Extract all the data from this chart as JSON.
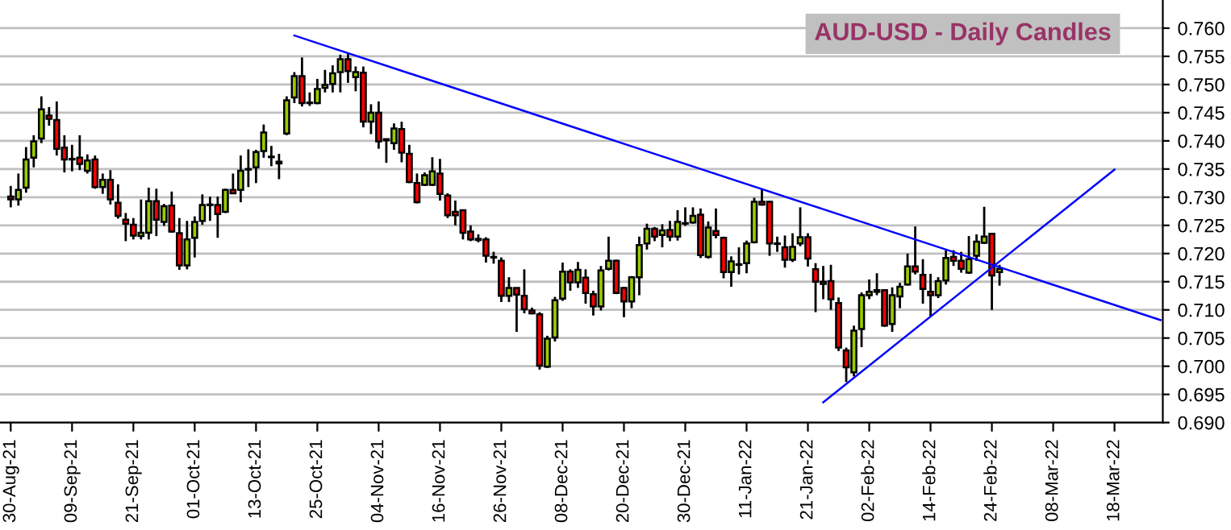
{
  "chart_data": {
    "type": "candlestick",
    "title": "AUD-USD - Daily Candles",
    "categories": [
      "30-Aug-21",
      null,
      null,
      null,
      null,
      null,
      null,
      null,
      "09-Sep-21",
      null,
      null,
      null,
      null,
      null,
      null,
      null,
      "21-Sep-21",
      null,
      null,
      null,
      null,
      null,
      null,
      null,
      "01-Oct-21",
      null,
      null,
      null,
      null,
      null,
      null,
      null,
      "13-Oct-21",
      null,
      null,
      null,
      null,
      null,
      null,
      null,
      "25-Oct-21",
      null,
      null,
      null,
      null,
      null,
      null,
      null,
      "04-Nov-21",
      null,
      null,
      null,
      null,
      null,
      null,
      null,
      "16-Nov-21",
      null,
      null,
      null,
      null,
      null,
      null,
      null,
      "26-Nov-21",
      null,
      null,
      null,
      null,
      null,
      null,
      null,
      "08-Dec-21",
      null,
      null,
      null,
      null,
      null,
      null,
      null,
      "20-Dec-21",
      null,
      null,
      null,
      null,
      null,
      null,
      null,
      "30-Dec-21",
      null,
      null,
      null,
      null,
      null,
      null,
      null,
      "11-Jan-22",
      null,
      null,
      null,
      null,
      null,
      null,
      null,
      "21-Jan-22",
      null,
      null,
      null,
      null,
      null,
      null,
      null,
      "02-Feb-22",
      null,
      null,
      null,
      null,
      null,
      null,
      null,
      "14-Feb-22",
      null,
      null,
      null,
      null,
      null,
      null,
      null,
      "24-Feb-22",
      null,
      null,
      null,
      null,
      null,
      null,
      null,
      "08-Mar-22",
      null,
      null,
      null,
      null,
      null,
      null,
      null,
      "18-Mar-22",
      null,
      null,
      null,
      null,
      null,
      null
    ],
    "ohlc": [
      [
        0.7301,
        0.732,
        0.7282,
        0.7296
      ],
      [
        0.7296,
        0.7342,
        0.7285,
        0.7313
      ],
      [
        0.7317,
        0.7389,
        0.7308,
        0.7367
      ],
      [
        0.737,
        0.741,
        0.7353,
        0.7399
      ],
      [
        0.7404,
        0.7479,
        0.7396,
        0.7456
      ],
      [
        0.7445,
        0.746,
        0.7427,
        0.7439
      ],
      [
        0.7437,
        0.747,
        0.7374,
        0.7386
      ],
      [
        0.7388,
        0.741,
        0.7344,
        0.7367
      ],
      [
        0.7367,
        0.7393,
        0.7346,
        0.7368
      ],
      [
        0.737,
        0.741,
        0.7348,
        0.7359
      ],
      [
        0.7347,
        0.7376,
        0.7342,
        0.7365
      ],
      [
        0.7367,
        0.7374,
        0.7315,
        0.7318
      ],
      [
        0.7318,
        0.7342,
        0.7306,
        0.7331
      ],
      [
        0.7331,
        0.7348,
        0.7287,
        0.7296
      ],
      [
        0.729,
        0.7323,
        0.7262,
        0.7267
      ],
      [
        0.726,
        0.7272,
        0.7222,
        0.7253
      ],
      [
        0.7251,
        0.7263,
        0.7225,
        0.7232
      ],
      [
        0.7231,
        0.7296,
        0.7225,
        0.7237
      ],
      [
        0.7237,
        0.7317,
        0.7225,
        0.7293
      ],
      [
        0.7293,
        0.7315,
        0.7231,
        0.726
      ],
      [
        0.7256,
        0.7288,
        0.7249,
        0.7284
      ],
      [
        0.7285,
        0.731,
        0.7237,
        0.7239
      ],
      [
        0.7236,
        0.7263,
        0.7171,
        0.7179
      ],
      [
        0.7179,
        0.7258,
        0.7172,
        0.7225
      ],
      [
        0.7228,
        0.7266,
        0.7193,
        0.7256
      ],
      [
        0.7258,
        0.7305,
        0.7251,
        0.7286
      ],
      [
        0.7286,
        0.7301,
        0.7258,
        0.7287
      ],
      [
        0.7286,
        0.7301,
        0.7228,
        0.727
      ],
      [
        0.7274,
        0.7315,
        0.7272,
        0.7313
      ],
      [
        0.7313,
        0.7342,
        0.7306,
        0.7307
      ],
      [
        0.7313,
        0.7374,
        0.7291,
        0.7347
      ],
      [
        0.7349,
        0.7385,
        0.7318,
        0.735
      ],
      [
        0.7353,
        0.7384,
        0.7325,
        0.738
      ],
      [
        0.7382,
        0.7429,
        0.737,
        0.7415
      ],
      [
        0.7371,
        0.7391,
        0.7355,
        0.7372
      ],
      [
        0.7363,
        0.7377,
        0.7332,
        0.736
      ],
      [
        0.7413,
        0.7479,
        0.741,
        0.7472
      ],
      [
        0.7477,
        0.7522,
        0.7467,
        0.7515
      ],
      [
        0.7515,
        0.7548,
        0.7461,
        0.7467
      ],
      [
        0.7468,
        0.7486,
        0.7462,
        0.7467
      ],
      [
        0.7467,
        0.751,
        0.7465,
        0.7492
      ],
      [
        0.7494,
        0.7526,
        0.7486,
        0.7499
      ],
      [
        0.7501,
        0.7534,
        0.7486,
        0.752
      ],
      [
        0.7522,
        0.7553,
        0.7486,
        0.7545
      ],
      [
        0.7545,
        0.7555,
        0.7503,
        0.7524
      ],
      [
        0.7513,
        0.7532,
        0.7488,
        0.7522
      ],
      [
        0.7521,
        0.7532,
        0.7424,
        0.7434
      ],
      [
        0.7434,
        0.7465,
        0.7412,
        0.745
      ],
      [
        0.745,
        0.747,
        0.7386,
        0.7399
      ],
      [
        0.7401,
        0.7403,
        0.7361,
        0.7403
      ],
      [
        0.7396,
        0.7431,
        0.7384,
        0.7422
      ],
      [
        0.7421,
        0.7434,
        0.7362,
        0.7379
      ],
      [
        0.7377,
        0.7393,
        0.7325,
        0.7327
      ],
      [
        0.7325,
        0.7342,
        0.7289,
        0.7291
      ],
      [
        0.7322,
        0.7344,
        0.732,
        0.7339
      ],
      [
        0.7322,
        0.7371,
        0.732,
        0.7346
      ],
      [
        0.7342,
        0.7368,
        0.7294,
        0.7306
      ],
      [
        0.7303,
        0.7307,
        0.7263,
        0.7268
      ],
      [
        0.7274,
        0.7294,
        0.725,
        0.7268
      ],
      [
        0.7277,
        0.7277,
        0.7225,
        0.7237
      ],
      [
        0.7239,
        0.725,
        0.7222,
        0.7225
      ],
      [
        0.7224,
        0.7234,
        0.722,
        0.7226
      ],
      [
        0.7225,
        0.7229,
        0.7184,
        0.7196
      ],
      [
        0.7194,
        0.7203,
        0.7182,
        0.7193
      ],
      [
        0.7187,
        0.7193,
        0.7114,
        0.7125
      ],
      [
        0.7125,
        0.7158,
        0.7114,
        0.7139
      ],
      [
        0.7139,
        0.7139,
        0.7061,
        0.7127
      ],
      [
        0.7125,
        0.7172,
        0.7094,
        0.7101
      ],
      [
        0.7099,
        0.7104,
        0.7092,
        0.7094
      ],
      [
        0.7092,
        0.7096,
        0.6994,
        0.7001
      ],
      [
        0.6999,
        0.7054,
        0.6997,
        0.7049
      ],
      [
        0.7051,
        0.7123,
        0.7044,
        0.7117
      ],
      [
        0.712,
        0.7184,
        0.7116,
        0.7168
      ],
      [
        0.7168,
        0.7172,
        0.7134,
        0.7149
      ],
      [
        0.7149,
        0.7185,
        0.7139,
        0.7171
      ],
      [
        0.7157,
        0.7172,
        0.7111,
        0.713
      ],
      [
        0.7128,
        0.7134,
        0.709,
        0.7106
      ],
      [
        0.7106,
        0.7178,
        0.7099,
        0.717
      ],
      [
        0.7173,
        0.723,
        0.717,
        0.7187
      ],
      [
        0.7187,
        0.7189,
        0.7128,
        0.713
      ],
      [
        0.7139,
        0.7141,
        0.7087,
        0.7115
      ],
      [
        0.7115,
        0.716,
        0.7103,
        0.7158
      ],
      [
        0.7158,
        0.723,
        0.7126,
        0.7215
      ],
      [
        0.7218,
        0.7253,
        0.7207,
        0.7244
      ],
      [
        0.7244,
        0.7247,
        0.7222,
        0.723
      ],
      [
        0.7233,
        0.7252,
        0.7211,
        0.7241
      ],
      [
        0.7242,
        0.7258,
        0.7222,
        0.723
      ],
      [
        0.723,
        0.7277,
        0.7223,
        0.7256
      ],
      [
        0.7253,
        0.7282,
        0.7249,
        0.7254
      ],
      [
        0.7255,
        0.7282,
        0.7253,
        0.7267
      ],
      [
        0.7269,
        0.728,
        0.7192,
        0.7197
      ],
      [
        0.7194,
        0.7257,
        0.7191,
        0.7246
      ],
      [
        0.724,
        0.728,
        0.7227,
        0.7233
      ],
      [
        0.7228,
        0.723,
        0.7156,
        0.7167
      ],
      [
        0.7167,
        0.7195,
        0.7141,
        0.7186
      ],
      [
        0.718,
        0.7211,
        0.7163,
        0.7181
      ],
      [
        0.7183,
        0.7223,
        0.7165,
        0.7218
      ],
      [
        0.722,
        0.7299,
        0.7218,
        0.7292
      ],
      [
        0.7292,
        0.7315,
        0.7285,
        0.7287
      ],
      [
        0.7292,
        0.7293,
        0.7196,
        0.7218
      ],
      [
        0.7218,
        0.723,
        0.7203,
        0.7217
      ],
      [
        0.7211,
        0.7232,
        0.7175,
        0.7189
      ],
      [
        0.7189,
        0.7236,
        0.7185,
        0.7212
      ],
      [
        0.7218,
        0.7282,
        0.7213,
        0.7229
      ],
      [
        0.7229,
        0.7236,
        0.7177,
        0.7191
      ],
      [
        0.7172,
        0.7183,
        0.7096,
        0.715
      ],
      [
        0.7146,
        0.7178,
        0.7119,
        0.715
      ],
      [
        0.7151,
        0.718,
        0.71,
        0.7119
      ],
      [
        0.7112,
        0.7122,
        0.7027,
        0.7033
      ],
      [
        0.7028,
        0.7033,
        0.6972,
        0.6998
      ],
      [
        0.6989,
        0.7072,
        0.6982,
        0.7063
      ],
      [
        0.7066,
        0.7131,
        0.7034,
        0.7126
      ],
      [
        0.7126,
        0.7154,
        0.7119,
        0.7132
      ],
      [
        0.7132,
        0.7165,
        0.7126,
        0.7135
      ],
      [
        0.7135,
        0.7135,
        0.707,
        0.7072
      ],
      [
        0.7075,
        0.714,
        0.7061,
        0.7126
      ],
      [
        0.7124,
        0.7148,
        0.7103,
        0.7141
      ],
      [
        0.7145,
        0.72,
        0.7143,
        0.7177
      ],
      [
        0.7177,
        0.7248,
        0.7163,
        0.7168
      ],
      [
        0.7162,
        0.719,
        0.7111,
        0.7137
      ],
      [
        0.7132,
        0.7164,
        0.7088,
        0.7126
      ],
      [
        0.7126,
        0.7158,
        0.7121,
        0.7151
      ],
      [
        0.7152,
        0.7206,
        0.7145,
        0.7192
      ],
      [
        0.7194,
        0.7206,
        0.7178,
        0.7187
      ],
      [
        0.7187,
        0.7203,
        0.7166,
        0.7173
      ],
      [
        0.7166,
        0.7231,
        0.7164,
        0.719
      ],
      [
        0.7196,
        0.7234,
        0.7187,
        0.7221
      ],
      [
        0.7219,
        0.7283,
        0.7217,
        0.723
      ],
      [
        0.7235,
        0.7235,
        0.71,
        0.7161
      ],
      [
        0.7167,
        0.718,
        0.7143,
        0.7173
      ],
      null,
      null,
      null,
      null,
      null,
      null,
      null,
      null,
      null,
      null,
      null,
      null,
      null,
      null,
      null,
      null,
      null,
      null,
      null,
      null,
      null
    ],
    "colors": [
      "#ff0000",
      "#99cc00",
      "#99cc00",
      "#99cc00",
      "#99cc00",
      "#ff0000",
      "#ff0000",
      "#ff0000",
      "#99cc00",
      "#ff0000",
      "#99cc00",
      "#ff0000",
      "#99cc00",
      "#ff0000",
      "#ff0000",
      "#ff0000",
      "#ff0000",
      "#99cc00",
      "#99cc00",
      "#ff0000",
      "#99cc00",
      "#ff0000",
      "#ff0000",
      "#99cc00",
      "#99cc00",
      "#99cc00",
      "#99cc00",
      "#ff0000",
      "#99cc00",
      "#ff0000",
      "#99cc00",
      "#99cc00",
      "#99cc00",
      "#99cc00",
      "#99cc00",
      "#ff0000",
      "#99cc00",
      "#99cc00",
      "#ff0000",
      "#ff0000",
      "#99cc00",
      "#99cc00",
      "#99cc00",
      "#99cc00",
      "#ff0000",
      "#99cc00",
      "#ff0000",
      "#99cc00",
      "#ff0000",
      "#99cc00",
      "#99cc00",
      "#ff0000",
      "#ff0000",
      "#ff0000",
      "#99cc00",
      "#99cc00",
      "#ff0000",
      "#ff0000",
      "#ff0000",
      "#ff0000",
      "#ff0000",
      "#99cc00",
      "#ff0000",
      "#ff0000",
      "#ff0000",
      "#99cc00",
      "#ff0000",
      "#ff0000",
      "#ff0000",
      "#ff0000",
      "#99cc00",
      "#99cc00",
      "#99cc00",
      "#ff0000",
      "#99cc00",
      "#ff0000",
      "#ff0000",
      "#99cc00",
      "#99cc00",
      "#ff0000",
      "#ff0000",
      "#99cc00",
      "#99cc00",
      "#99cc00",
      "#ff0000",
      "#99cc00",
      "#ff0000",
      "#99cc00",
      "#99cc00",
      "#99cc00",
      "#ff0000",
      "#99cc00",
      "#ff0000",
      "#ff0000",
      "#99cc00",
      "#99cc00",
      "#99cc00",
      "#99cc00",
      "#ff0000",
      "#ff0000",
      "#ff0000",
      "#ff0000",
      "#99cc00",
      "#99cc00",
      "#ff0000",
      "#ff0000",
      "#99cc00",
      "#ff0000",
      "#ff0000",
      "#ff0000",
      "#99cc00",
      "#99cc00",
      "#99cc00",
      "#99cc00",
      "#ff0000",
      "#99cc00",
      "#99cc00",
      "#99cc00",
      "#ff0000",
      "#ff0000",
      "#ff0000",
      "#99cc00",
      "#99cc00",
      "#ff0000",
      "#ff0000",
      "#99cc00",
      "#99cc00",
      "#99cc00",
      "#ff0000",
      "#99cc00",
      null,
      null,
      null,
      null,
      null,
      null,
      null,
      null,
      null,
      null,
      null,
      null,
      null,
      null,
      null,
      null,
      null,
      null,
      null,
      null,
      null
    ],
    "series": [
      {
        "type": "line",
        "color": "#0000ff",
        "values": [
          null,
          null,
          null,
          null,
          null,
          null,
          null,
          null,
          null,
          null,
          null,
          null,
          null,
          null,
          null,
          null,
          null,
          null,
          null,
          null,
          null,
          null,
          null,
          null,
          null,
          null,
          null,
          null,
          null,
          null,
          null,
          null,
          null,
          null,
          null,
          null,
          null,
          0.7587,
          null,
          null,
          null,
          null,
          null,
          null,
          null,
          null,
          null,
          null,
          null,
          null,
          null,
          null,
          null,
          null,
          null,
          null,
          null,
          null,
          null,
          null,
          null,
          null,
          null,
          null,
          null,
          null,
          null,
          null,
          null,
          null,
          null,
          null,
          null,
          null,
          null,
          null,
          null,
          null,
          null,
          null,
          null,
          null,
          null,
          null,
          null,
          null,
          null,
          null,
          null,
          null,
          null,
          null,
          null,
          null,
          null,
          null,
          null,
          null,
          null,
          null,
          null,
          null,
          null,
          null,
          null,
          null,
          null,
          null,
          null,
          null,
          null,
          null,
          null,
          null,
          null,
          null,
          null,
          null,
          null,
          null,
          null,
          null,
          null,
          null,
          null,
          null,
          null,
          null,
          null,
          null,
          null,
          null,
          null,
          null,
          null,
          null,
          null,
          null,
          null,
          null,
          null,
          null,
          null,
          null,
          null,
          null,
          null,
          null,
          null,
          null,
          0.7082
        ]
      },
      {
        "type": "line",
        "color": "#0000ff",
        "values": [
          null,
          null,
          null,
          null,
          null,
          null,
          null,
          null,
          null,
          null,
          null,
          null,
          null,
          null,
          null,
          null,
          null,
          null,
          null,
          null,
          null,
          null,
          null,
          null,
          null,
          null,
          null,
          null,
          null,
          null,
          null,
          null,
          null,
          null,
          null,
          null,
          null,
          null,
          null,
          null,
          null,
          null,
          null,
          null,
          null,
          null,
          null,
          null,
          null,
          null,
          null,
          null,
          null,
          null,
          null,
          null,
          null,
          null,
          null,
          null,
          null,
          null,
          null,
          null,
          null,
          null,
          null,
          null,
          null,
          null,
          null,
          null,
          null,
          null,
          null,
          null,
          null,
          null,
          null,
          null,
          null,
          null,
          null,
          null,
          null,
          null,
          null,
          null,
          null,
          null,
          null,
          null,
          null,
          null,
          null,
          null,
          null,
          null,
          null,
          null,
          null,
          null,
          null,
          null,
          null,
          null,
          0.6936,
          null,
          null,
          null,
          null,
          null,
          null,
          null,
          null,
          null,
          null,
          null,
          null,
          null,
          null,
          null,
          null,
          null,
          null,
          null,
          null,
          null,
          null,
          null,
          null,
          null,
          null,
          null,
          null,
          null,
          null,
          null,
          null,
          null,
          null,
          null,
          null,
          null,
          0.7349,
          null,
          null,
          null,
          null,
          null,
          null
        ]
      }
    ],
    "ylim": [
      0.69,
      0.765
    ],
    "yticks": [
      {
        "value": 0.69,
        "label": "0.690"
      },
      {
        "value": 0.695,
        "label": "0.695"
      },
      {
        "value": 0.7,
        "label": "0.700"
      },
      {
        "value": 0.705,
        "label": "0.705"
      },
      {
        "value": 0.71,
        "label": "0.710"
      },
      {
        "value": 0.715,
        "label": "0.715"
      },
      {
        "value": 0.72,
        "label": "0.720"
      },
      {
        "value": 0.725,
        "label": "0.725"
      },
      {
        "value": 0.73,
        "label": "0.730"
      },
      {
        "value": 0.735,
        "label": "0.735"
      },
      {
        "value": 0.74,
        "label": "0.740"
      },
      {
        "value": 0.745,
        "label": "0.745"
      },
      {
        "value": 0.75,
        "label": "0.750"
      },
      {
        "value": 0.755,
        "label": "0.755"
      },
      {
        "value": 0.76,
        "label": "0.760"
      }
    ],
    "grid": "y"
  }
}
